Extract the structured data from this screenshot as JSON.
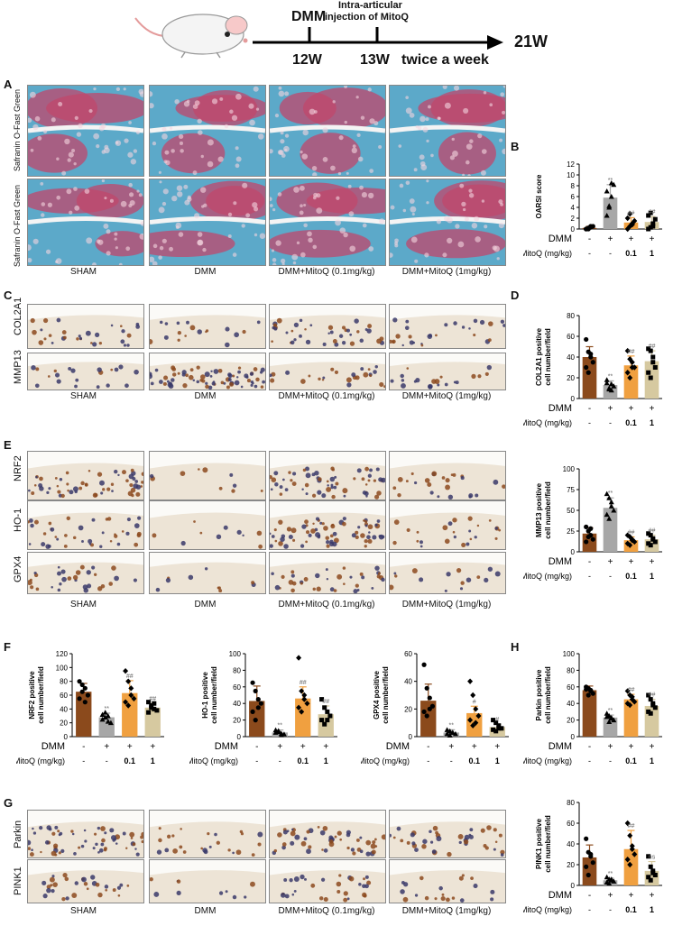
{
  "timeline": {
    "dmm_label": "DMM",
    "injection_label_line1": "Intra-articular",
    "injection_label_line2": "injection of MitoQ",
    "t12": "12W",
    "t13": "13W",
    "end": "21W",
    "freq": "twice a week"
  },
  "panel_letters": {
    "A": "A",
    "B": "B",
    "C": "C",
    "D": "D",
    "E": "E",
    "F": "F",
    "G": "G",
    "H": "H"
  },
  "group_labels": [
    "SHAM",
    "DMM",
    "DMM+MitoQ  (0.1mg/kg)",
    "DMM+MitoQ  (1mg/kg)"
  ],
  "row_labels": {
    "A_top": "Safranin O-Fast Green",
    "A_bottom": "Safranin O-Fast Green",
    "C1": "COL2A1",
    "C2": "MMP13",
    "E1": "NRF2",
    "E2": "HO-1",
    "E3": "GPX4",
    "G1": "Parkin",
    "G2": "PINK1"
  },
  "treatment_table": {
    "dmm_label": "DMM",
    "mitoq_label": "MitoQ (mg/kg)",
    "dmm_values": [
      "-",
      "+",
      "+",
      "+"
    ],
    "mitoq_values": [
      "-",
      "-",
      "0.1",
      "1"
    ]
  },
  "colors": {
    "sham": "#8B4A1C",
    "dmm": "#A7A7A7",
    "low": "#F0A040",
    "high": "#D6C9A0",
    "safranin_bg": "#5CA9C9",
    "safranin_red": "#C0476B",
    "ihc_bg": "#EDE4D6",
    "ihc_brown": "#8C4A1F"
  },
  "chart_data": [
    {
      "id": "B",
      "type": "bar",
      "ylabel": "OARSI score",
      "ylim": [
        0,
        12
      ],
      "ticks": [
        0,
        2,
        4,
        6,
        8,
        10,
        12
      ],
      "values": [
        0.2,
        5.8,
        1.2,
        1.3
      ],
      "errors": [
        0.3,
        2.4,
        0.9,
        1.0
      ],
      "sig": [
        "",
        "**",
        "##",
        "##"
      ],
      "points": [
        [
          0,
          0,
          0.3,
          0.5,
          0,
          0.2,
          0.5
        ],
        [
          2.5,
          4,
          6,
          8.2,
          7,
          4.3,
          8.5
        ],
        [
          0,
          0.5,
          1,
          1.5,
          2,
          2.8,
          0.8
        ],
        [
          0,
          0.3,
          1,
          1.8,
          2.5,
          3,
          0.5
        ]
      ]
    },
    {
      "id": "D1",
      "type": "bar",
      "ylabel": "COL2A1 positive cell number/field",
      "ylim": [
        0,
        80
      ],
      "ticks": [
        0,
        20,
        40,
        60,
        80
      ],
      "values": [
        40,
        13,
        32,
        36
      ],
      "errors": [
        10,
        4,
        9,
        10
      ],
      "sig": [
        "",
        "**",
        "##",
        "##"
      ],
      "points": [
        [
          57,
          45,
          43,
          35,
          30,
          25,
          40
        ],
        [
          18,
          10,
          8,
          12,
          15,
          9,
          14
        ],
        [
          46,
          38,
          35,
          30,
          25,
          20,
          30
        ],
        [
          48,
          46,
          40,
          30,
          25,
          20,
          35
        ]
      ]
    },
    {
      "id": "D2",
      "type": "bar",
      "ylabel": "MMP13 positive cell number/field",
      "ylim": [
        0,
        100
      ],
      "ticks": [
        0,
        25,
        50,
        75,
        100
      ],
      "values": [
        22,
        53,
        14,
        15
      ],
      "errors": [
        7,
        12,
        4,
        5
      ],
      "sig": [
        "",
        "**",
        "##",
        "##"
      ],
      "points": [
        [
          30,
          25,
          20,
          15,
          12,
          18,
          28
        ],
        [
          70,
          65,
          55,
          50,
          45,
          40,
          60
        ],
        [
          20,
          18,
          15,
          12,
          10,
          8,
          14
        ],
        [
          22,
          20,
          15,
          12,
          10,
          8,
          16
        ]
      ]
    },
    {
      "id": "F1",
      "type": "bar",
      "ylabel": "NRF2 positive cell number/field",
      "ylim": [
        0,
        120
      ],
      "ticks": [
        0,
        20,
        40,
        60,
        80,
        100,
        120
      ],
      "values": [
        65,
        28,
        63,
        42
      ],
      "errors": [
        12,
        6,
        18,
        6
      ],
      "sig": [
        "",
        "**",
        "##",
        "##"
      ],
      "points": [
        [
          80,
          75,
          70,
          60,
          55,
          65,
          50
        ],
        [
          32,
          28,
          22,
          20,
          25,
          35,
          30
        ],
        [
          95,
          80,
          70,
          55,
          50,
          45,
          60
        ],
        [
          50,
          45,
          40,
          38,
          35,
          42,
          48
        ]
      ]
    },
    {
      "id": "F2",
      "type": "bar",
      "ylabel": "HO-1 positive cell number/field",
      "ylim": [
        0,
        100
      ],
      "ticks": [
        0,
        20,
        40,
        60,
        80,
        100
      ],
      "values": [
        43,
        5,
        46,
        27
      ],
      "errors": [
        18,
        3,
        14,
        10
      ],
      "sig": [
        "",
        "**",
        "##",
        "##"
      ],
      "points": [
        [
          65,
          55,
          45,
          40,
          30,
          20,
          35
        ],
        [
          8,
          6,
          4,
          3,
          5,
          7,
          2
        ],
        [
          95,
          55,
          50,
          40,
          35,
          30,
          45
        ],
        [
          45,
          35,
          30,
          25,
          20,
          15,
          20
        ]
      ]
    },
    {
      "id": "F3",
      "type": "bar",
      "ylabel": "GPX4 positive cell number/field",
      "ylim": [
        0,
        60
      ],
      "ticks": [
        0,
        20,
        40,
        60
      ],
      "values": [
        26,
        3,
        17,
        7
      ],
      "errors": [
        12,
        2,
        5,
        2
      ],
      "sig": [
        "",
        "**",
        "#",
        "#"
      ],
      "points": [
        [
          52,
          35,
          28,
          22,
          18,
          15,
          20
        ],
        [
          5,
          4,
          3,
          2,
          2,
          1,
          3
        ],
        [
          40,
          30,
          20,
          15,
          12,
          8,
          10
        ],
        [
          12,
          10,
          8,
          6,
          5,
          4,
          6
        ]
      ]
    },
    {
      "id": "H1",
      "type": "bar",
      "ylabel": "Parkin positive cell number/field",
      "ylim": [
        0,
        100
      ],
      "ticks": [
        0,
        20,
        40,
        60,
        80,
        100
      ],
      "values": [
        56,
        23,
        45,
        37
      ],
      "errors": [
        5,
        3,
        6,
        8
      ],
      "sig": [
        "",
        "**",
        "##",
        "##"
      ],
      "points": [
        [
          60,
          58,
          55,
          52,
          57,
          50,
          56
        ],
        [
          28,
          25,
          22,
          20,
          24,
          18,
          23
        ],
        [
          55,
          50,
          45,
          42,
          40,
          38,
          48
        ],
        [
          50,
          45,
          40,
          35,
          30,
          28,
          38
        ]
      ]
    },
    {
      "id": "H2",
      "type": "bar",
      "ylabel": "PINK1 positive cell number/field",
      "ylim": [
        0,
        80
      ],
      "ticks": [
        0,
        20,
        40,
        60,
        80
      ],
      "values": [
        27,
        5,
        35,
        14
      ],
      "errors": [
        12,
        2,
        18,
        9
      ],
      "sig": [
        "",
        "**",
        "##",
        "ns"
      ],
      "points": [
        [
          45,
          32,
          28,
          22,
          18,
          10,
          30
        ],
        [
          8,
          6,
          5,
          4,
          3,
          2,
          6
        ],
        [
          60,
          48,
          38,
          30,
          25,
          20,
          35
        ],
        [
          28,
          18,
          14,
          10,
          8,
          5,
          12
        ]
      ]
    }
  ]
}
